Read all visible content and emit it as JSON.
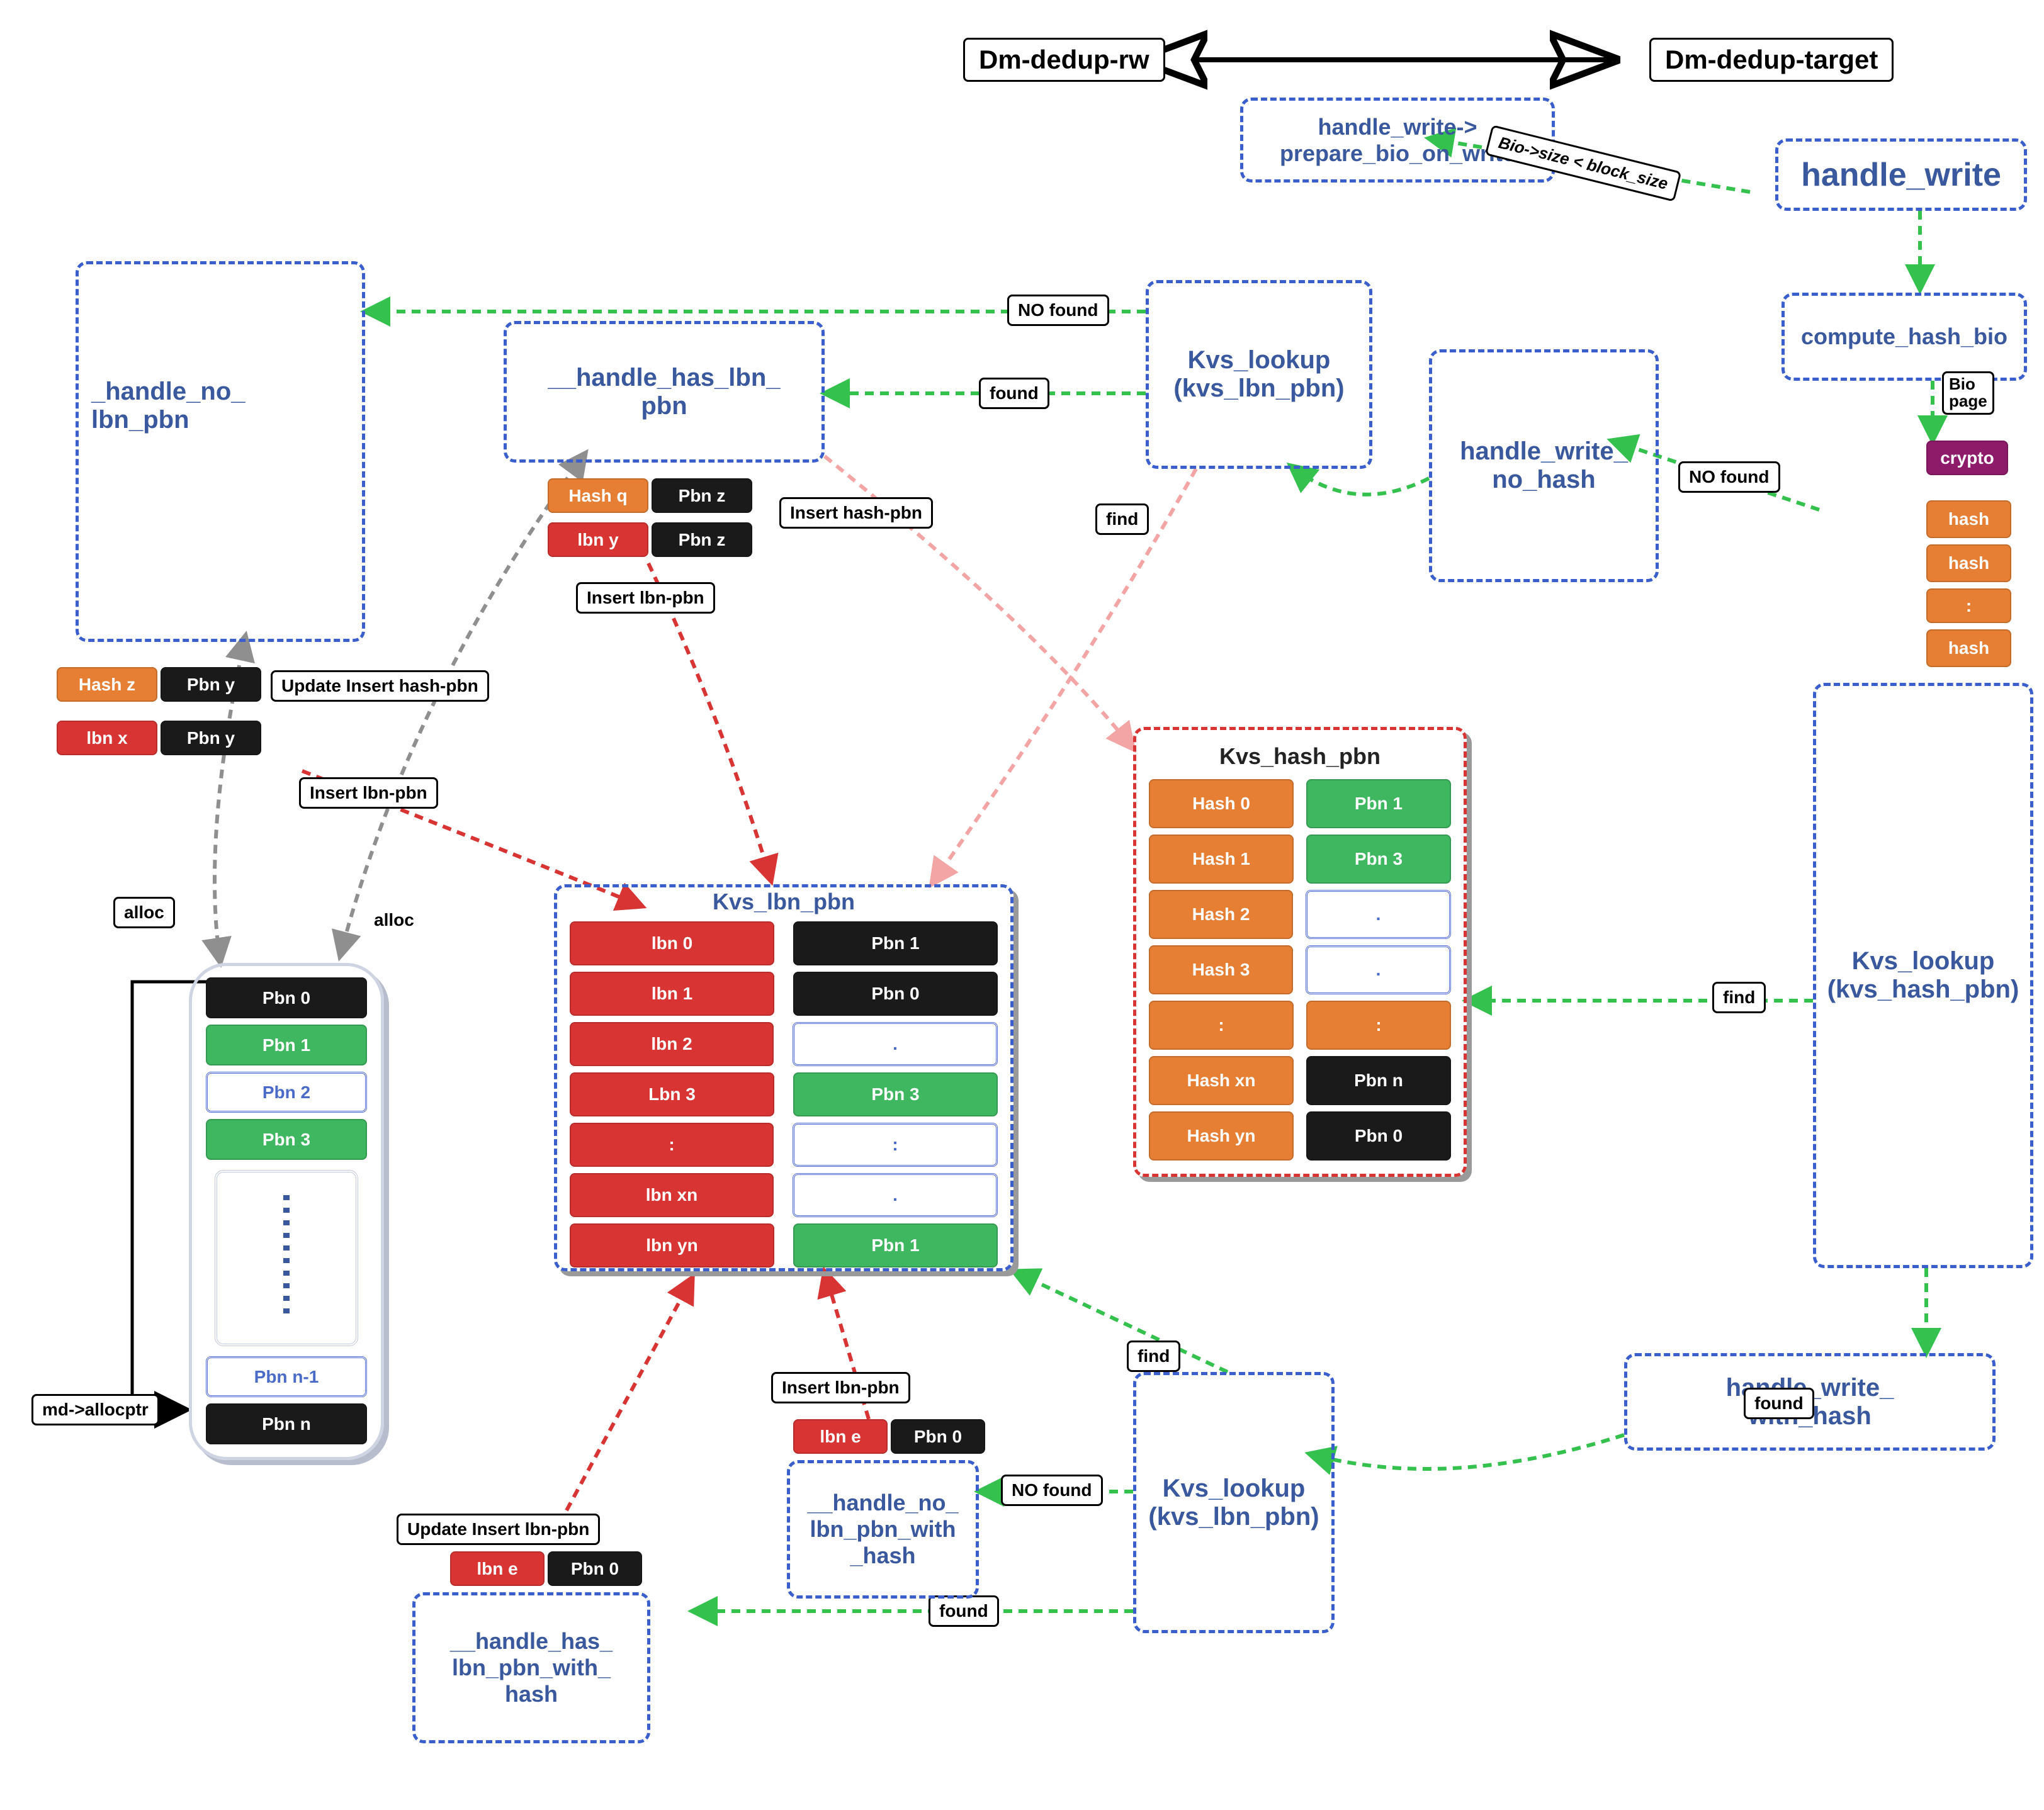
{
  "headers": {
    "dm_dedup_rw": "Dm-dedup-rw",
    "dm_dedup_target": "Dm-dedup-target"
  },
  "nodes": {
    "prepare_bio": "handle_write->\nprepare_bio_on_write",
    "handle_write": "handle_write",
    "compute_hash_bio": "compute_hash_bio",
    "bio_page": "Bio\npage",
    "crypto": "crypto",
    "handle_no_lbn_pbn": "_handle_no_\nlbn_pbn",
    "handle_has_lbn_pbn": "__handle_has_lbn_\npbn",
    "kvs_lookup_top": "Kvs_lookup\n(kvs_lbn_pbn)",
    "handle_write_no_hash": "handle_write_\nno_hash",
    "kvs_lookup_hash_pbn": "Kvs_lookup\n(kvs_hash_pbn)",
    "handle_write_with_hash": "handle_write_\nwith_hash",
    "kvs_lookup_bottom": "Kvs_lookup\n(kvs_lbn_pbn)",
    "handle_no_lbn_pbn_with_hash": "__handle_no_\nlbn_pbn_with\n_hash",
    "handle_has_lbn_pbn_with_hash": "__handle_has_\nlbn_pbn_with_\nhash"
  },
  "labels": {
    "bio_size": "Bio->size < block_size",
    "no_found_top": "NO found",
    "found_mid": "found",
    "no_found_right": "NO found",
    "find_top": "find",
    "find_right": "find",
    "found_right": "found",
    "find_bottom": "find",
    "no_found_bottom": "NO found",
    "found_bottom": "found",
    "insert_hash_pbn": "Insert hash-pbn",
    "insert_lbn_pbn": "Insert lbn-pbn",
    "update_insert_hash_pbn": "Update Insert hash-pbn",
    "insert_lbn_pbn2": "Insert lbn-pbn",
    "insert_lbn_pbn3": "Insert lbn-pbn",
    "update_insert_lbn_pbn": "Update Insert lbn-pbn",
    "alloc1": "alloc",
    "alloc2": "alloc",
    "md_allocptr": "md->allocptr"
  },
  "pairs_top": {
    "hash_q": "Hash q",
    "pbn_z1": "Pbn z",
    "lbn_y": "lbn y",
    "pbn_z2": "Pbn z"
  },
  "pairs_left": {
    "hash_z": "Hash z",
    "pbn_y1": "Pbn y",
    "lbn_x": "lbn x",
    "pbn_y2": "Pbn y"
  },
  "pairs_bottom": {
    "lbn_e1": "lbn e",
    "pbn_0a": "Pbn 0",
    "lbn_e2": "lbn e",
    "pbn_0b": "Pbn 0"
  },
  "kvs_lbn_pbn": {
    "title": "Kvs_lbn_pbn",
    "left": [
      "lbn 0",
      "lbn 1",
      "lbn 2",
      "Lbn 3",
      ":",
      "lbn xn",
      "lbn yn"
    ],
    "right": [
      "Pbn 1",
      "Pbn 0",
      ".",
      "Pbn 3",
      ":",
      ".",
      "Pbn 1"
    ],
    "right_style": [
      "black",
      "black",
      "white-blue",
      "green",
      "white-blue",
      "white-blue",
      "green"
    ]
  },
  "kvs_hash_pbn": {
    "title": "Kvs_hash_pbn",
    "left": [
      "Hash 0",
      "Hash 1",
      "Hash 2",
      "Hash 3",
      ":",
      "Hash xn",
      "Hash yn"
    ],
    "right": [
      "Pbn 1",
      "Pbn 3",
      ".",
      ".",
      ":",
      "Pbn n",
      "Pbn 0"
    ],
    "right_style": [
      "green",
      "green",
      "white-blue",
      "white-blue",
      "orange",
      "black",
      "black"
    ]
  },
  "pbn_column": {
    "items": [
      "Pbn 0",
      "Pbn 1",
      "Pbn 2",
      "Pbn 3",
      "Pbn n-1",
      "Pbn n"
    ],
    "styles": [
      "black",
      "green",
      "white-blue",
      "green",
      "white-blue",
      "black"
    ]
  },
  "hash_stack": {
    "items": [
      "hash",
      "hash",
      ":",
      "hash"
    ]
  },
  "colors": {
    "blue": "#3a5fcd",
    "text": "#39589d",
    "green_arrow": "#35c14e",
    "red_arrow": "#d93434",
    "gray_arrow": "#8f8f8f",
    "pink_arrow": "#f3a5a5"
  },
  "fonts": {
    "node": 36,
    "big": 52,
    "title": 42
  }
}
